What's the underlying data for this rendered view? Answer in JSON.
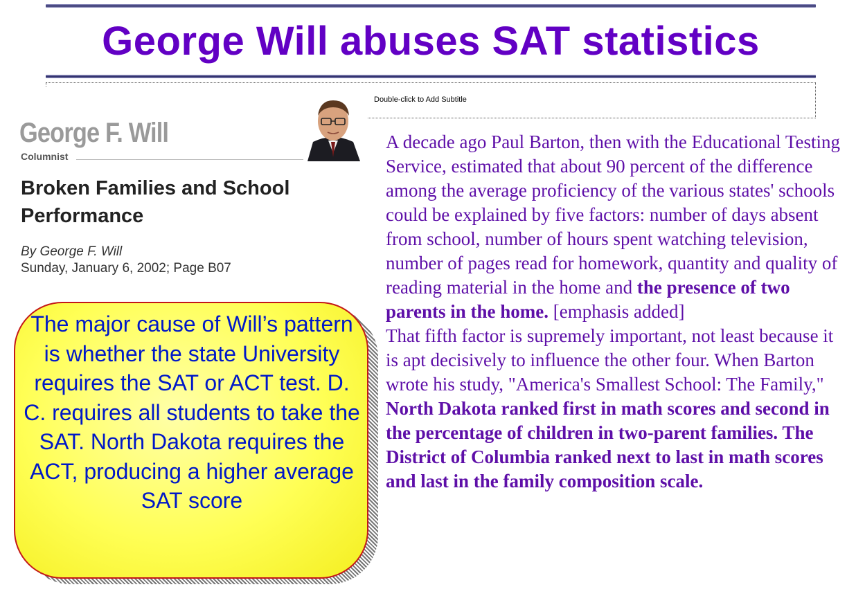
{
  "slide": {
    "title": "George Will abuses SAT statistics",
    "subtitle_placeholder": "Double-click to Add Subtitle"
  },
  "clipping": {
    "masthead_name": "George F. Will",
    "masthead_role": "Columnist",
    "article_title": "Broken Families and School Performance",
    "byline": "By George F. Will",
    "dateline": "Sunday, January 6, 2002; Page B07"
  },
  "callout": {
    "text": "The major cause of Will’s pattern is whether the state University requires the SAT or ACT test.  D. C. requires all students to take the SAT. North Dakota requires the ACT, producing a higher average SAT score"
  },
  "quote": {
    "p1_plain": "A decade ago Paul Barton, then with the Educational Testing Service, estimated that about 90 percent of the difference among the average proficiency of the various states' schools could be explained by five factors: number of days absent from school, number of hours spent watching television, number of pages read for homework, quantity and quality of reading material in the home and ",
    "p1_bold": "the presence of two parents in the home.",
    "p1_tail": " [emphasis added]",
    "p2_plain": "That fifth factor is supremely important, not least because it is apt decisively to influence the other four. When Barton wrote his study, \"America's Smallest School: The Family,\" ",
    "p2_bold": "North Dakota ranked first in math scores and second in the percentage of children in two-parent families. The District of Columbia ranked next to last in math scores and last in the family composition scale."
  },
  "colors": {
    "title": "#6200c4",
    "quote_text": "#5e0fa8",
    "callout_fill": "#ffff55",
    "callout_border": "#c41818",
    "callout_text": "#0018c8"
  }
}
